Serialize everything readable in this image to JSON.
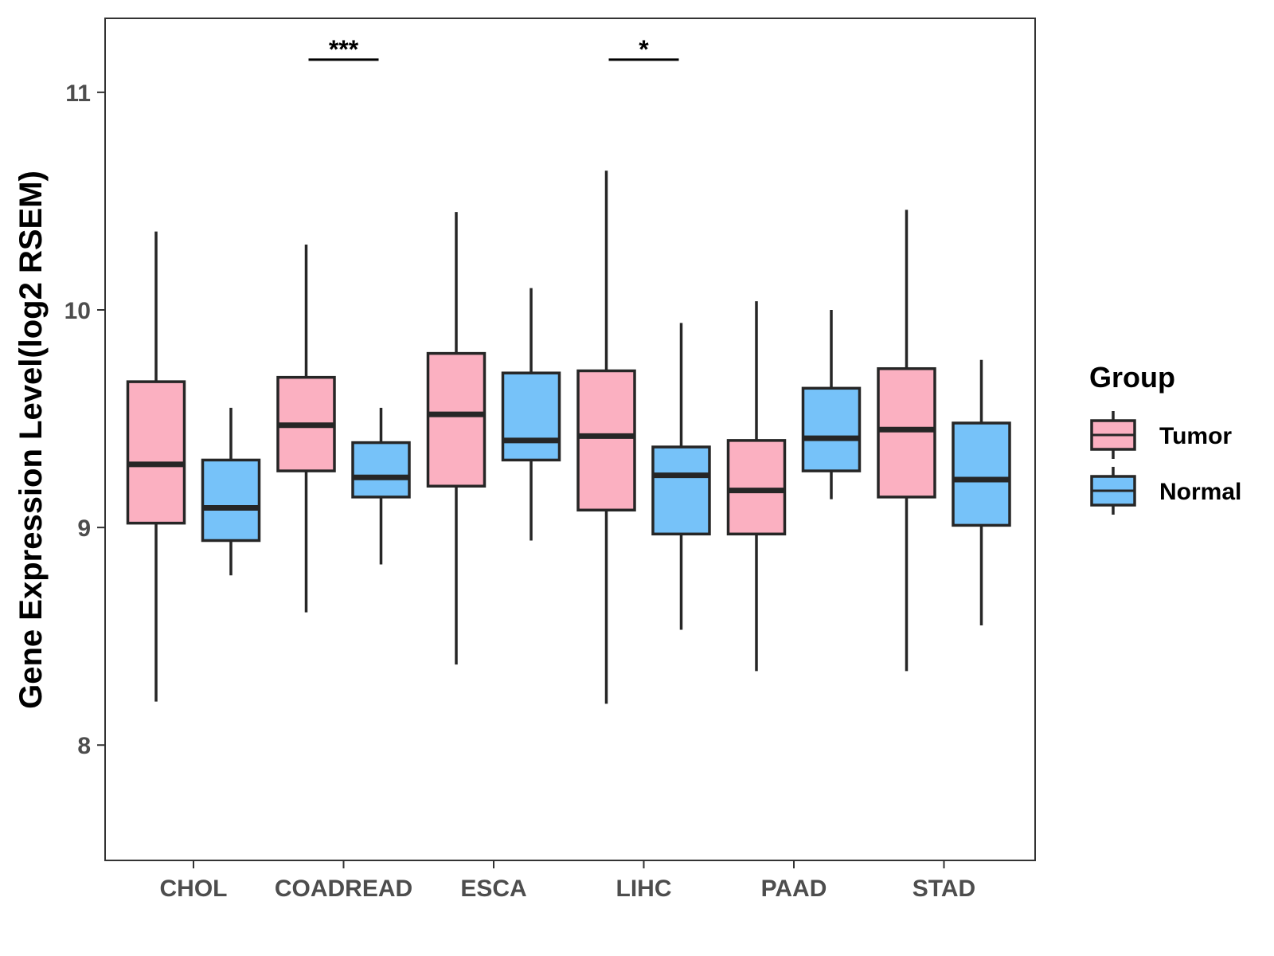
{
  "chart_data": {
    "type": "boxplot",
    "title": "",
    "xlabel": "",
    "ylabel": "Gene Expression Level(log2 RSEM)",
    "ylim": [
      7.47,
      11.34
    ],
    "yticks": [
      8,
      9,
      10,
      11
    ],
    "ytick_labels": [
      "8",
      "9",
      "10",
      "11"
    ],
    "grid": false,
    "categories": [
      "CHOL",
      "COADREAD",
      "ESCA",
      "LIHC",
      "PAAD",
      "STAD"
    ],
    "series": [
      {
        "name": "Tumor",
        "color": "#FBB0C1",
        "boxes": [
          {
            "min": 8.2,
            "q1": 9.02,
            "median": 9.29,
            "q3": 9.67,
            "max": 10.36
          },
          {
            "min": 8.61,
            "q1": 9.26,
            "median": 9.47,
            "q3": 9.69,
            "max": 10.3
          },
          {
            "min": 8.37,
            "q1": 9.19,
            "median": 9.52,
            "q3": 9.8,
            "max": 10.45
          },
          {
            "min": 8.19,
            "q1": 9.08,
            "median": 9.42,
            "q3": 9.72,
            "max": 10.64
          },
          {
            "min": 8.34,
            "q1": 8.97,
            "median": 9.17,
            "q3": 9.4,
            "max": 10.04
          },
          {
            "min": 8.34,
            "q1": 9.14,
            "median": 9.45,
            "q3": 9.73,
            "max": 10.46
          }
        ]
      },
      {
        "name": "Normal",
        "color": "#76C2F9",
        "boxes": [
          {
            "min": 8.78,
            "q1": 8.94,
            "median": 9.09,
            "q3": 9.31,
            "max": 9.55
          },
          {
            "min": 8.83,
            "q1": 9.14,
            "median": 9.23,
            "q3": 9.39,
            "max": 9.55
          },
          {
            "min": 8.94,
            "q1": 9.31,
            "median": 9.4,
            "q3": 9.71,
            "max": 10.1
          },
          {
            "min": 8.53,
            "q1": 8.97,
            "median": 9.24,
            "q3": 9.37,
            "max": 9.94
          },
          {
            "min": 9.13,
            "q1": 9.26,
            "median": 9.41,
            "q3": 9.64,
            "max": 10.0
          },
          {
            "min": 8.55,
            "q1": 9.01,
            "median": 9.22,
            "q3": 9.48,
            "max": 9.77
          }
        ]
      }
    ],
    "significance": [
      {
        "category": "COADREAD",
        "label": "***",
        "y": 11.15
      },
      {
        "category": "LIHC",
        "label": "*",
        "y": 11.15
      }
    ],
    "legend": {
      "title": "Group",
      "position": "right",
      "entries": [
        "Tumor",
        "Normal"
      ]
    }
  }
}
